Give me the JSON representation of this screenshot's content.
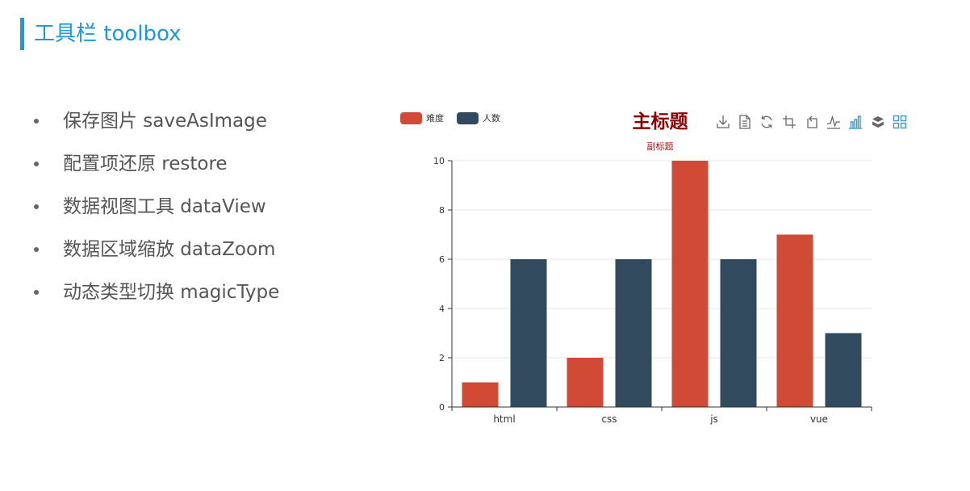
{
  "slide": {
    "title": "工具栏 toolbox",
    "accent_color": "#1a9ad6",
    "bullets": [
      {
        "text": "保存图片 saveAsImage"
      },
      {
        "text": "配置项还原 restore"
      },
      {
        "text": "数据视图工具 dataView"
      },
      {
        "text": "数据区域缩放 dataZoom"
      },
      {
        "text": "动态类型切换 magicType"
      }
    ]
  },
  "toolbox": {
    "icons": [
      {
        "name": "save-as-image-icon",
        "color": "#666666"
      },
      {
        "name": "data-view-icon",
        "color": "#666666"
      },
      {
        "name": "restore-icon",
        "color": "#666666"
      },
      {
        "name": "data-zoom-icon",
        "color": "#666666"
      },
      {
        "name": "data-zoom-back-icon",
        "color": "#666666"
      },
      {
        "name": "magic-type-line-icon",
        "color": "#666666"
      },
      {
        "name": "magic-type-bar-icon",
        "color": "#3e98c5"
      },
      {
        "name": "magic-type-stack-icon",
        "color": "#666666"
      },
      {
        "name": "magic-type-tiled-icon",
        "color": "#3e98c5"
      }
    ]
  },
  "chart_data": {
    "type": "bar",
    "title": "主标题",
    "subtitle": "副标题",
    "title_color": "#8b0000",
    "subtitle_color": "#aa1111",
    "categories": [
      "html",
      "css",
      "js",
      "vue"
    ],
    "series": [
      {
        "name": "难度",
        "color": "#d04a35",
        "values": [
          1,
          2,
          10,
          7
        ]
      },
      {
        "name": "人数",
        "color": "#324a5e",
        "values": [
          6,
          6,
          6,
          3
        ]
      }
    ],
    "yticks": [
      "0",
      "2",
      "4",
      "6",
      "8",
      "10"
    ],
    "ylim": [
      0,
      10
    ],
    "grid": true,
    "legend_position": "top-left"
  }
}
